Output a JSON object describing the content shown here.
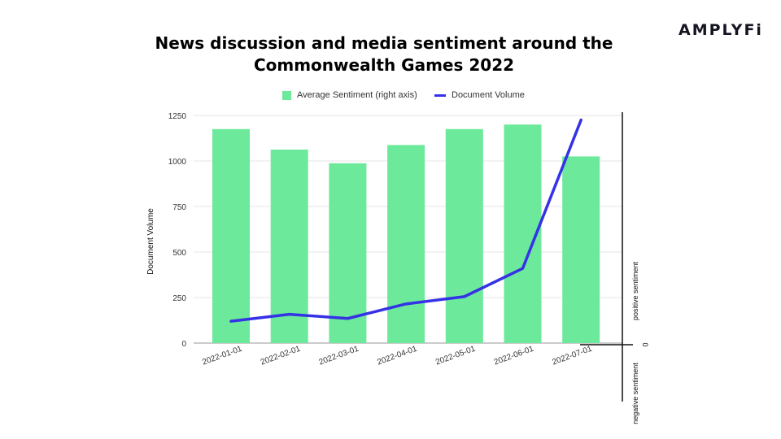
{
  "header": {
    "title_line1": "News discussion and media sentiment around the",
    "title_line2": "Commonwealth Games 2022",
    "logo_text": "AMPLYFi"
  },
  "colors": {
    "sentiment_bar": "#6ce99b",
    "volume_line": "#3532e6",
    "axis": "#111111",
    "gridline": "#e6e6e6"
  },
  "chart_data": {
    "type": "bar",
    "title": "News discussion and media sentiment around the Commonwealth Games 2022",
    "categories": [
      "2022-01-01",
      "2022-02-01",
      "2022-03-01",
      "2022-04-01",
      "2022-05-01",
      "2022-06-01",
      "2022-07-01"
    ],
    "series": [
      {
        "name": "Average Sentiment (right axis)",
        "type": "bar",
        "axis": "right",
        "values": [
          0.94,
          0.85,
          0.79,
          0.87,
          0.94,
          0.96,
          0.82
        ]
      },
      {
        "name": "Document Volume",
        "type": "line",
        "axis": "left",
        "values": [
          120,
          158,
          135,
          215,
          255,
          410,
          1225
        ]
      }
    ],
    "ylabel": "Document Volume",
    "ylim": [
      0,
      1250
    ],
    "yticks": [
      0,
      250,
      500,
      750,
      1000,
      1250
    ],
    "right_axis": {
      "zero_label": "0",
      "positive_label": "positive sentiment",
      "negative_label": "negative sentiment"
    },
    "legend_position": "top",
    "grid": true
  }
}
